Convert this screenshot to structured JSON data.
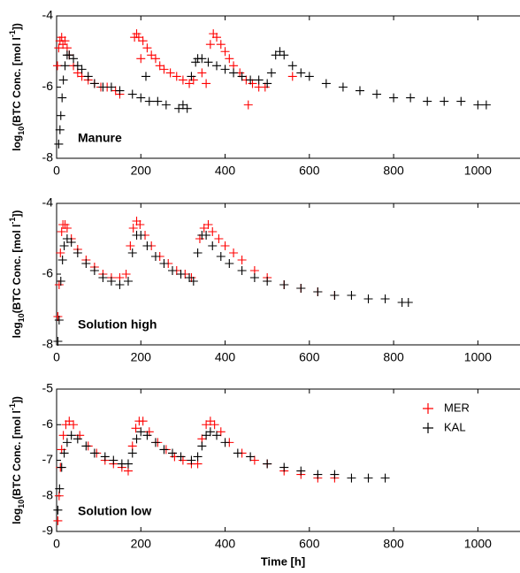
{
  "chart_data": [
    {
      "type": "scatter",
      "annotation": "Manure",
      "ylabel": [
        "log",
        "10",
        "(BTC Conc. [mol l",
        "-1",
        "])"
      ],
      "xlim": [
        0,
        1100
      ],
      "xticks": [
        0,
        200,
        400,
        600,
        800,
        1000
      ],
      "ylim": [
        -8,
        -4
      ],
      "yticks": [
        -8,
        -6,
        -4
      ],
      "series": [
        {
          "color": "#ff0000",
          "x": [
            2,
            5,
            8,
            12,
            15,
            20,
            25,
            30,
            40,
            50,
            60,
            75,
            90,
            105,
            120,
            140,
            150,
            185,
            190,
            195,
            200,
            205,
            215,
            225,
            235,
            245,
            255,
            270,
            285,
            300,
            315,
            325,
            345,
            355,
            365,
            372,
            380,
            390,
            400,
            410,
            420,
            435,
            450,
            455,
            465,
            480,
            495,
            560
          ],
          "values": [
            -5.4,
            -4.9,
            -4.7,
            -4.6,
            -4.8,
            -4.7,
            -4.9,
            -5.1,
            -5.4,
            -5.6,
            -5.7,
            -5.8,
            -5.9,
            -6.0,
            -6.0,
            -6.1,
            -6.2,
            -4.6,
            -4.5,
            -4.6,
            -5.2,
            -4.7,
            -4.9,
            -5.1,
            -5.2,
            -5.4,
            -5.5,
            -5.6,
            -5.7,
            -5.8,
            -5.9,
            -5.8,
            -5.6,
            -5.9,
            -4.8,
            -4.5,
            -4.6,
            -4.8,
            -5.0,
            -5.2,
            -5.4,
            -5.6,
            -5.8,
            -6.5,
            -5.9,
            -6.0,
            -6.0,
            -5.7
          ]
        },
        {
          "color": "#000000",
          "x": [
            5,
            8,
            10,
            13,
            16,
            20,
            25,
            30,
            40,
            50,
            60,
            75,
            90,
            110,
            130,
            150,
            180,
            200,
            212,
            220,
            240,
            260,
            290,
            300,
            310,
            320,
            330,
            335,
            345,
            360,
            380,
            400,
            420,
            440,
            460,
            480,
            500,
            510,
            520,
            530,
            540,
            560,
            580,
            600,
            640,
            680,
            720,
            760,
            800,
            840,
            880,
            920,
            960,
            1000,
            1020
          ],
          "values": [
            -7.6,
            -7.2,
            -6.8,
            -6.3,
            -5.8,
            -5.4,
            -5.1,
            -5.1,
            -5.2,
            -5.4,
            -5.5,
            -5.7,
            -5.9,
            -6.0,
            -6.0,
            -6.1,
            -6.2,
            -6.3,
            -5.7,
            -6.4,
            -6.4,
            -6.5,
            -6.6,
            -6.5,
            -6.6,
            -5.7,
            -5.3,
            -5.2,
            -5.2,
            -5.3,
            -5.4,
            -5.5,
            -5.6,
            -5.7,
            -5.8,
            -5.8,
            -5.9,
            -5.6,
            -5.1,
            -5.0,
            -5.1,
            -5.4,
            -5.6,
            -5.7,
            -5.9,
            -6.0,
            -6.1,
            -6.2,
            -6.3,
            -6.3,
            -6.4,
            -6.4,
            -6.4,
            -6.5,
            -6.5
          ]
        }
      ]
    },
    {
      "type": "scatter",
      "annotation": "Solution high",
      "ylabel": [
        "log",
        "10",
        "(BTC Conc. [mol l",
        "-1",
        "])"
      ],
      "xlim": [
        0,
        1100
      ],
      "xticks": [
        0,
        200,
        400,
        600,
        800,
        1000
      ],
      "ylim": [
        -8,
        -4
      ],
      "yticks": [
        -8,
        -6,
        -4
      ],
      "series": [
        {
          "color": "#ff0000",
          "x": [
            3,
            6,
            9,
            12,
            15,
            20,
            25,
            35,
            50,
            70,
            90,
            110,
            130,
            150,
            165,
            175,
            182,
            190,
            198,
            210,
            225,
            245,
            265,
            285,
            305,
            320,
            340,
            350,
            360,
            370,
            385,
            400,
            420,
            440,
            470,
            500,
            540,
            580,
            620,
            660
          ],
          "values": [
            -7.2,
            -6.3,
            -5.4,
            -4.8,
            -4.6,
            -4.6,
            -4.7,
            -5.0,
            -5.3,
            -5.6,
            -5.8,
            -6.0,
            -6.1,
            -6.1,
            -6.0,
            -5.2,
            -4.7,
            -4.5,
            -4.6,
            -4.9,
            -5.2,
            -5.5,
            -5.7,
            -5.9,
            -6.0,
            -6.1,
            -5.0,
            -4.7,
            -4.6,
            -4.8,
            -5.0,
            -5.2,
            -5.4,
            -5.6,
            -5.9,
            -6.1,
            -6.3,
            -6.4,
            -6.5,
            -6.6
          ]
        },
        {
          "color": "#000000",
          "x": [
            3,
            6,
            10,
            14,
            18,
            25,
            35,
            50,
            70,
            90,
            110,
            130,
            150,
            170,
            180,
            190,
            200,
            215,
            235,
            255,
            275,
            295,
            315,
            325,
            335,
            345,
            355,
            370,
            390,
            410,
            440,
            470,
            500,
            540,
            580,
            620,
            660,
            700,
            740,
            780,
            820,
            835
          ],
          "values": [
            -7.9,
            -7.3,
            -6.2,
            -5.6,
            -5.2,
            -5.0,
            -5.1,
            -5.4,
            -5.7,
            -5.9,
            -6.1,
            -6.2,
            -6.3,
            -6.2,
            -5.4,
            -4.9,
            -4.9,
            -5.2,
            -5.5,
            -5.7,
            -5.9,
            -6.0,
            -6.1,
            -6.2,
            -5.4,
            -4.9,
            -4.9,
            -5.2,
            -5.5,
            -5.7,
            -5.9,
            -6.1,
            -6.2,
            -6.3,
            -6.4,
            -6.5,
            -6.6,
            -6.6,
            -6.7,
            -6.7,
            -6.8,
            -6.8
          ]
        }
      ]
    },
    {
      "type": "scatter",
      "annotation": "Solution low",
      "ylabel": [
        "log",
        "10",
        "(BTC Conc. [mol l",
        "-1",
        "])"
      ],
      "xlabel": "Time [h]",
      "xlim": [
        0,
        1100
      ],
      "xticks": [
        0,
        200,
        400,
        600,
        800,
        1000
      ],
      "ylim": [
        -9,
        -5
      ],
      "yticks": [
        -9,
        -8,
        -7,
        -6,
        -5
      ],
      "legend": "upper right",
      "series": [
        {
          "name": "MER",
          "color": "#ff0000",
          "x": [
            3,
            6,
            9,
            12,
            16,
            22,
            30,
            40,
            55,
            75,
            95,
            115,
            135,
            155,
            170,
            180,
            188,
            196,
            205,
            220,
            240,
            260,
            280,
            300,
            320,
            335,
            345,
            355,
            365,
            375,
            390,
            410,
            440,
            470,
            500,
            540,
            580,
            620,
            660
          ],
          "values": [
            -8.7,
            -8.0,
            -7.2,
            -6.7,
            -6.3,
            -6.0,
            -5.9,
            -6.0,
            -6.3,
            -6.6,
            -6.8,
            -7.0,
            -7.1,
            -7.2,
            -7.3,
            -6.6,
            -6.1,
            -5.9,
            -5.9,
            -6.2,
            -6.5,
            -6.7,
            -6.9,
            -7.0,
            -7.1,
            -7.1,
            -6.4,
            -6.0,
            -5.9,
            -6.0,
            -6.2,
            -6.5,
            -6.8,
            -7.0,
            -7.1,
            -7.3,
            -7.4,
            -7.5,
            -7.5
          ]
        },
        {
          "name": "KAL",
          "color": "#000000",
          "x": [
            3,
            7,
            12,
            18,
            25,
            35,
            50,
            70,
            90,
            115,
            135,
            155,
            170,
            180,
            190,
            200,
            215,
            235,
            255,
            275,
            295,
            320,
            335,
            345,
            355,
            365,
            380,
            400,
            430,
            460,
            500,
            540,
            580,
            620,
            660,
            700,
            740,
            780
          ],
          "values": [
            -8.4,
            -7.8,
            -7.2,
            -6.8,
            -6.5,
            -6.3,
            -6.4,
            -6.6,
            -6.8,
            -6.9,
            -7.0,
            -7.1,
            -7.1,
            -6.8,
            -6.4,
            -6.2,
            -6.3,
            -6.5,
            -6.7,
            -6.8,
            -6.9,
            -7.0,
            -6.9,
            -6.6,
            -6.3,
            -6.2,
            -6.3,
            -6.5,
            -6.8,
            -6.9,
            -7.1,
            -7.2,
            -7.3,
            -7.4,
            -7.4,
            -7.5,
            -7.5,
            -7.5
          ]
        }
      ]
    }
  ]
}
